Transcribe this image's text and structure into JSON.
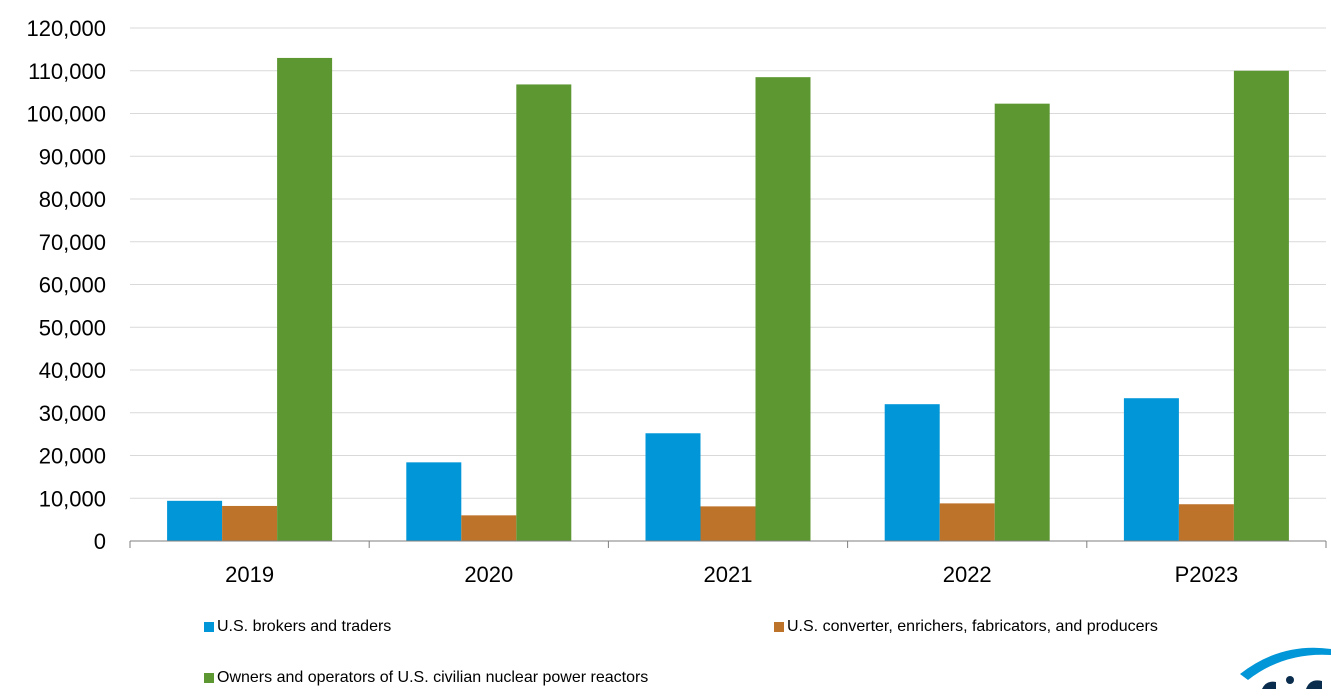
{
  "chart_data": {
    "type": "bar",
    "title": "",
    "xlabel": "",
    "ylabel": "",
    "categories": [
      "2019",
      "2020",
      "2021",
      "2022",
      "P2023"
    ],
    "series": [
      {
        "name": "U.S. brokers and traders",
        "color": "#0096D7",
        "values": [
          9400,
          18400,
          25200,
          32000,
          33400
        ]
      },
      {
        "name": "U.S. converter, enrichers, fabricators, and producers",
        "color": "#BD732A",
        "values": [
          8200,
          6000,
          8100,
          8800,
          8600
        ]
      },
      {
        "name": "Owners and operators of U.S. civilian nuclear power reactors",
        "color": "#5D9732",
        "values": [
          113000,
          106800,
          108500,
          102300,
          110000
        ]
      }
    ],
    "ylim": [
      0,
      120000
    ],
    "yticks": [
      "0",
      "10,000",
      "20,000",
      "30,000",
      "40,000",
      "50,000",
      "60,000",
      "70,000",
      "80,000",
      "90,000",
      "100,000",
      "110,000",
      "120,000"
    ],
    "grid": true,
    "legend_position": "bottom"
  },
  "logo": {
    "icon": "eia-logo-icon",
    "color": "#0096D7"
  }
}
